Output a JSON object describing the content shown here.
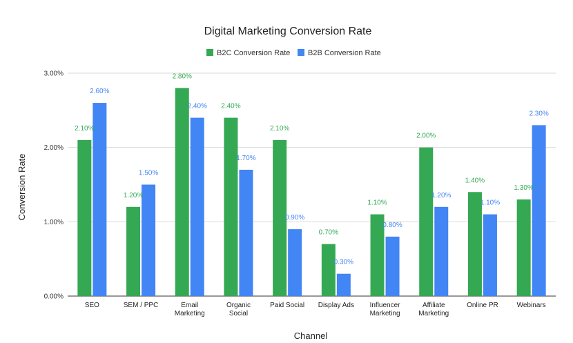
{
  "chart_data": {
    "type": "bar",
    "title": "Digital Marketing Conversion Rate",
    "xlabel": "Channel",
    "ylabel": "Conversion Rate",
    "categories": [
      [
        "SEO"
      ],
      [
        "SEM / PPC"
      ],
      [
        "Email",
        "Marketing"
      ],
      [
        "Organic",
        "Social"
      ],
      [
        "Paid Social"
      ],
      [
        "Display Ads"
      ],
      [
        "Influencer",
        "Marketing"
      ],
      [
        "Affiliate",
        "Marketing"
      ],
      [
        "Online PR"
      ],
      [
        "Webinars"
      ]
    ],
    "series": [
      {
        "name": "B2C Conversion Rate",
        "color": "#34a853",
        "values": [
          2.1,
          1.2,
          2.8,
          2.4,
          2.1,
          0.7,
          1.1,
          2.0,
          1.4,
          1.3
        ]
      },
      {
        "name": "B2B Conversion Rate",
        "color": "#4285f4",
        "values": [
          2.6,
          1.5,
          2.4,
          1.7,
          0.9,
          0.3,
          0.8,
          1.2,
          1.1,
          2.3
        ]
      }
    ],
    "ylim": [
      0,
      3
    ],
    "yticks": [
      "0.00%",
      "1.00%",
      "2.00%",
      "3.00%"
    ],
    "legend_position": "top",
    "grid": true
  }
}
